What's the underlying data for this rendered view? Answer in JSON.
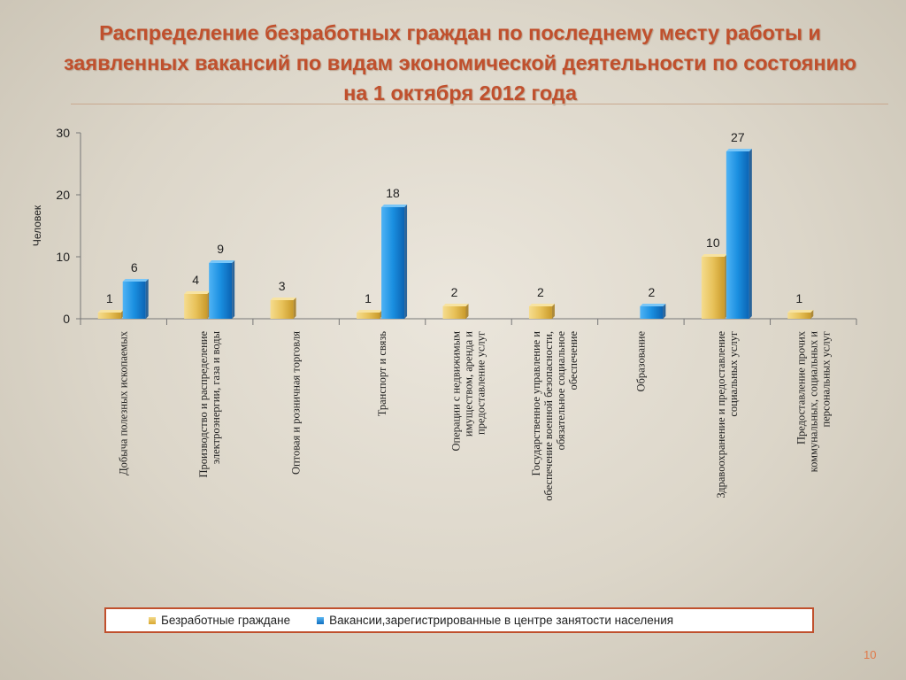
{
  "slide": {
    "title": "Распределение безработных граждан по последнему месту работы и заявленных вакансий по видам экономической деятельности по состоянию на 1 октября 2012 года",
    "page_number": "10",
    "colors": {
      "title": "#c0502d",
      "legend_border": "#c0502d",
      "page_number": "#e07a4a"
    }
  },
  "chart_data": {
    "type": "bar",
    "title": "",
    "ylabel": "Человек",
    "xlabel": "",
    "ylim": [
      0,
      30
    ],
    "yticks": [
      0,
      10,
      20,
      30
    ],
    "grid": false,
    "legend_position": "bottom",
    "categories": [
      [
        "Добыча полезных ископаемых"
      ],
      [
        "Производство и распределение",
        "электроэнергии, газа и воды"
      ],
      [
        "Оптовая и розничная торговля"
      ],
      [
        "Транспорт и связь"
      ],
      [
        "Операции с недвижимым",
        "имуществом, аренда и",
        "предоставление услуг"
      ],
      [
        "Государственное управление и",
        "обеспечение военной безопасности,",
        "обязательное социальное",
        "обеспечение"
      ],
      [
        "Образование"
      ],
      [
        "Здравоохранение и предоставление",
        "социальных услуг"
      ],
      [
        "Предоставление прочих",
        "коммунальных, социальных и",
        "персональных услуг"
      ]
    ],
    "series": [
      {
        "name": "Безработные граждане",
        "color": "#e8c25a",
        "values": [
          1,
          4,
          3,
          1,
          2,
          2,
          null,
          10,
          1
        ]
      },
      {
        "name": "Вакансии,зарегистрированные в центре занятости населения",
        "color": "#1a8fe0",
        "values": [
          6,
          9,
          null,
          18,
          null,
          null,
          2,
          27,
          null
        ]
      }
    ]
  }
}
